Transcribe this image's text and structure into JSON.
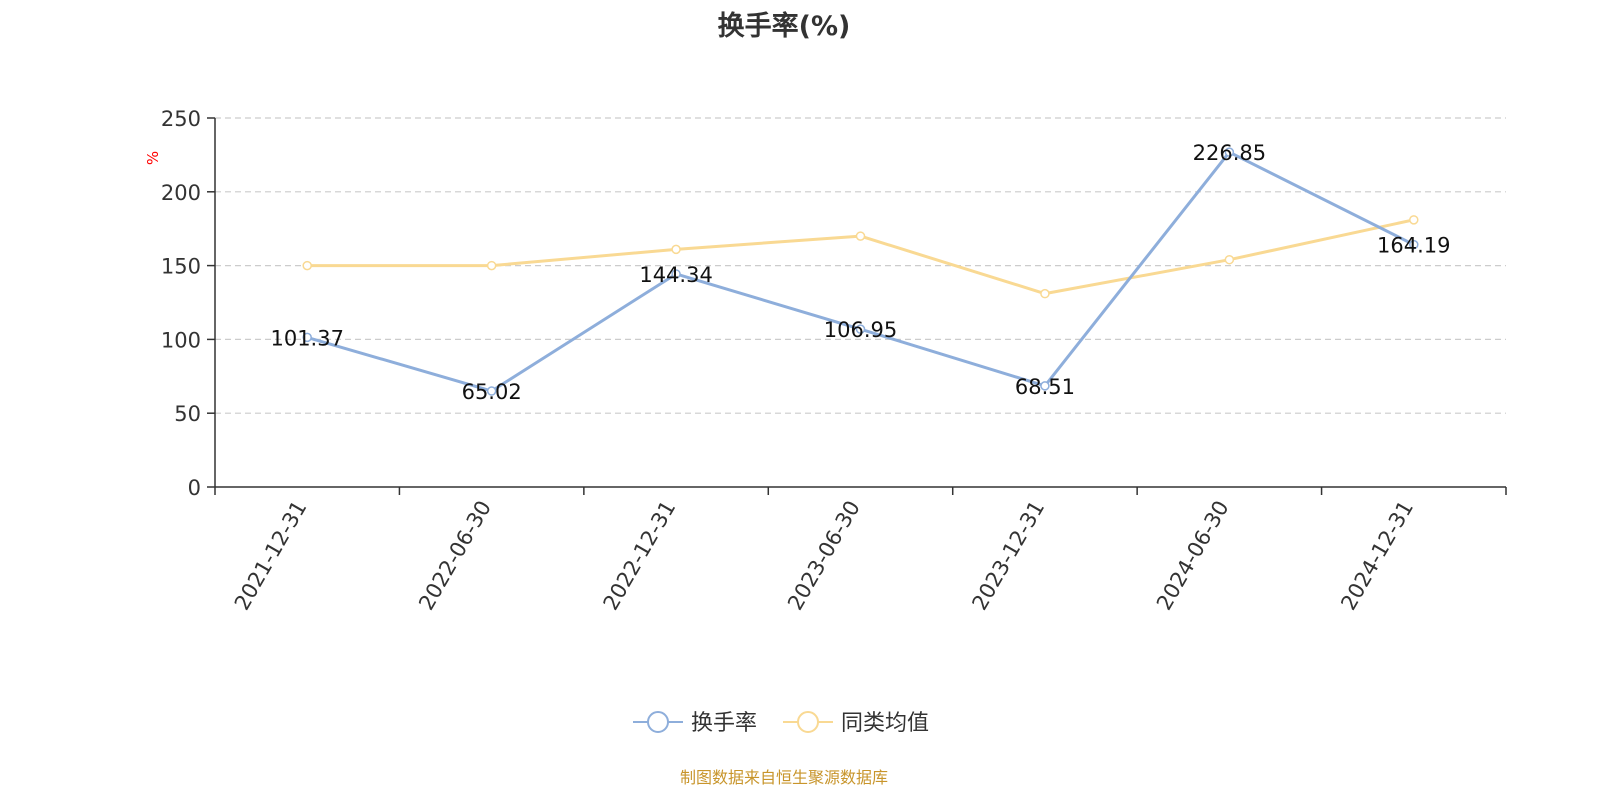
{
  "chart_data": {
    "type": "line",
    "title": "换手率(%)",
    "ylabel": "%",
    "categories": [
      "2021-12-31",
      "2022-06-30",
      "2022-12-31",
      "2023-06-30",
      "2023-12-31",
      "2024-06-30",
      "2024-12-31"
    ],
    "ylim": [
      0,
      250
    ],
    "yticks": [
      0,
      50,
      100,
      150,
      200,
      250
    ],
    "grid": true,
    "legend_position": "bottom-center",
    "series": [
      {
        "name": "换手率",
        "values": [
          101.37,
          65.02,
          144.34,
          106.95,
          68.51,
          226.85,
          164.19
        ],
        "labels": [
          "101.37",
          "65.02",
          "144.34",
          "106.95",
          "68.51",
          "226.85",
          "164.19"
        ],
        "color": "#8eaedb",
        "show_labels": true
      },
      {
        "name": "同类均值",
        "values": [
          150,
          150,
          161,
          170,
          131,
          154,
          181
        ],
        "color": "#f9d993",
        "show_labels": false
      }
    ]
  },
  "footer": {
    "source": "制图数据来自恒生聚源数据库"
  },
  "colors": {
    "axis": "#333333",
    "grid": "#cccccc",
    "ylabel": "#ff0000",
    "source": "#c8952b"
  }
}
